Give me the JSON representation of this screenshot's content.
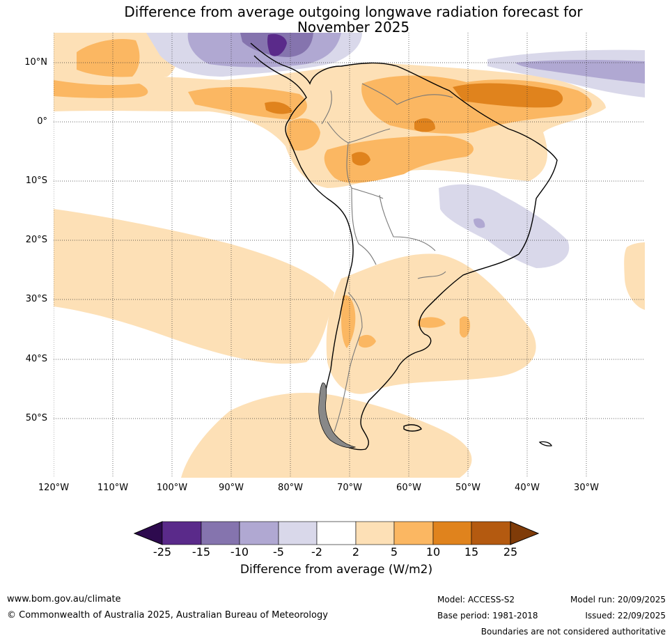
{
  "title": {
    "line1": "Difference from average outgoing longwave radiation forecast for",
    "line2": "November 2025"
  },
  "map": {
    "lat_labels": [
      "10°N",
      "0°",
      "10°S",
      "20°S",
      "30°S",
      "40°S",
      "50°S"
    ],
    "lon_labels": [
      "120°W",
      "110°W",
      "100°W",
      "90°W",
      "80°W",
      "70°W",
      "60°W",
      "50°W",
      "40°W",
      "30°W"
    ]
  },
  "colorbar": {
    "ticks": [
      "-25",
      "-15",
      "-10",
      "-5",
      "-2",
      "2",
      "5",
      "10",
      "15",
      "25"
    ],
    "colors": [
      "#2d0a4e",
      "#5a2a8a",
      "#8574ae",
      "#b0a8d2",
      "#d9d8ea",
      "#ffffff",
      "#fde0b6",
      "#fbb762",
      "#e0831d",
      "#b45a10",
      "#7f3b08"
    ],
    "label": "Difference from average (W/m2)"
  },
  "footer": {
    "url": "www.bom.gov.au/climate",
    "copyright": "© Commonwealth of Australia 2025, Australian Bureau of Meteorology",
    "model": "Model: ACCESS-S2",
    "base_period": "Base period: 1981-2018",
    "model_run": "Model run: 20/09/2025",
    "issued": "Issued: 22/09/2025",
    "disclaimer": "Boundaries are not considered authoritative"
  }
}
